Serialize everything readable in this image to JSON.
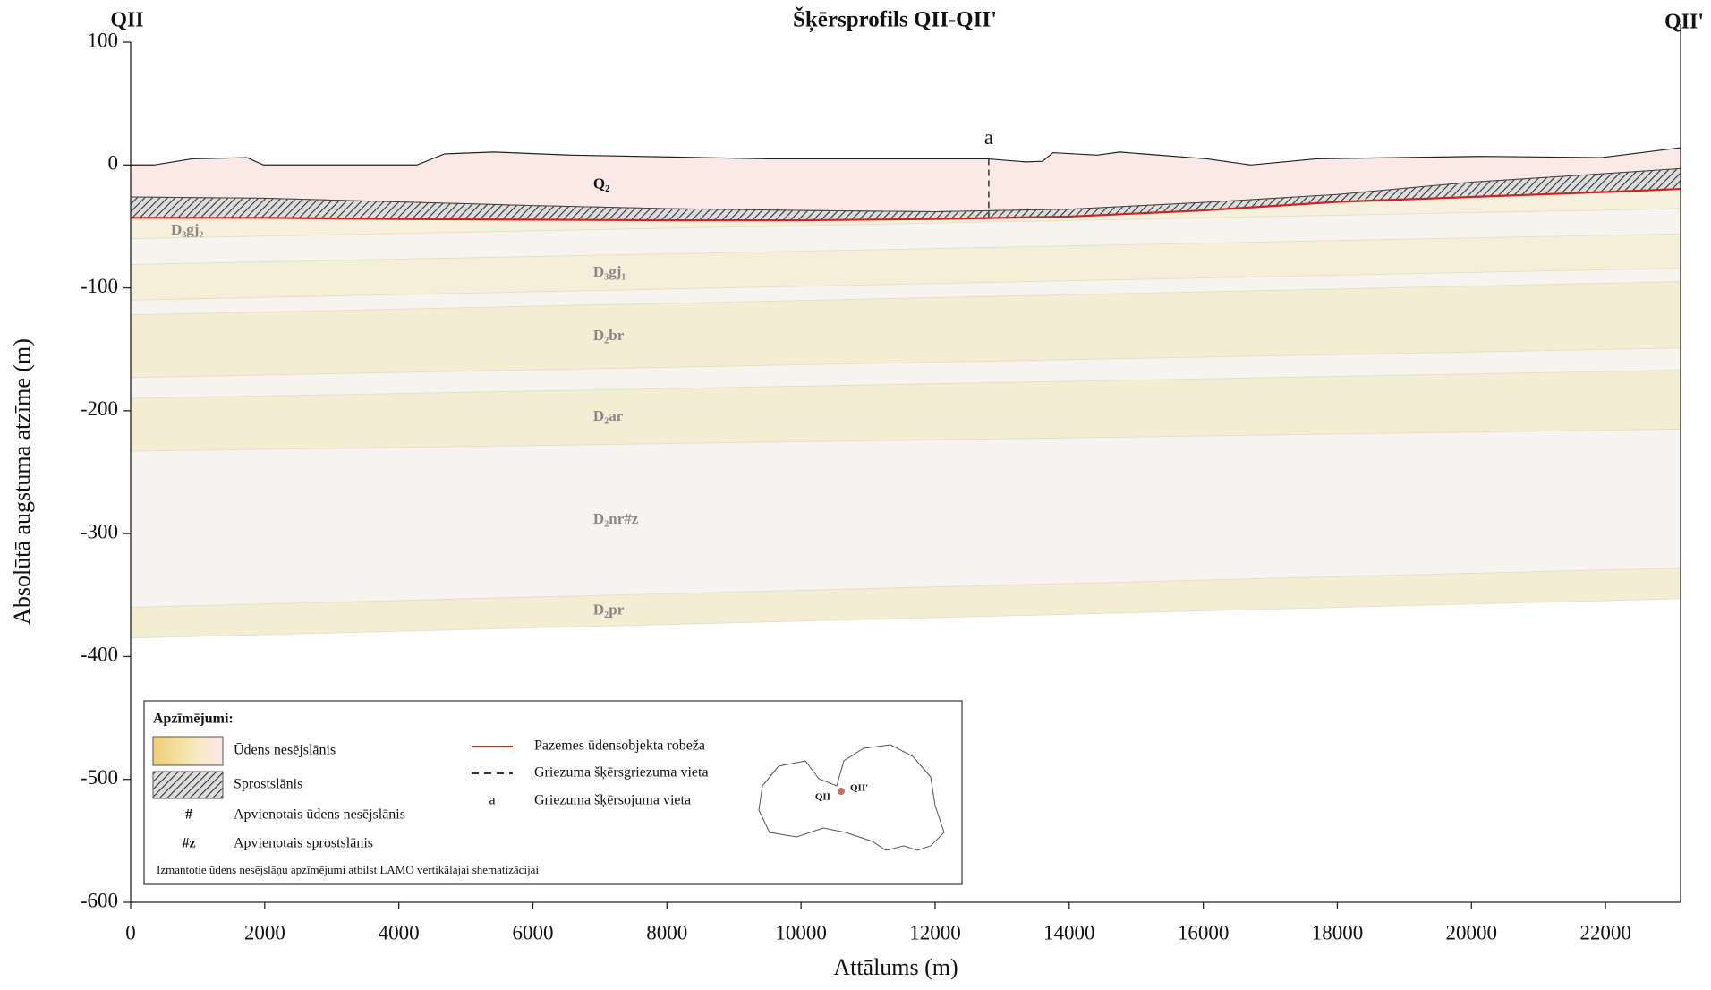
{
  "chart_data": {
    "type": "section",
    "title": "Šķērsprofils QII-QII'",
    "left_label": "QII",
    "right_label": "QII'",
    "xlabel": "Attālums (m)",
    "ylabel": "Absolūtā augstuma atzīme (m)",
    "xlim": [
      0,
      23120
    ],
    "ylim": [
      -600,
      100
    ],
    "xticks": [
      0,
      2000,
      4000,
      6000,
      8000,
      10000,
      12000,
      14000,
      16000,
      18000,
      20000,
      22000
    ],
    "yticks": [
      100,
      0,
      -100,
      -200,
      -300,
      -400,
      -500,
      -600
    ],
    "surface": {
      "color": "#222222",
      "fill": "#fbe9e6",
      "label": "Q₂",
      "x": [
        0,
        350,
        916,
        1735,
        1980,
        4270,
        4680,
        5420,
        6560,
        9510,
        12780,
        13350,
        13600,
        13760,
        14420,
        14750,
        16050,
        16710,
        17690,
        20140,
        21940,
        23120
      ],
      "values": [
        0,
        0,
        5,
        6,
        0,
        0,
        9,
        10.5,
        8,
        5,
        5,
        2.5,
        3,
        10,
        8,
        10.5,
        5,
        0,
        5,
        7,
        6,
        14
      ]
    },
    "contacts_x": [
      0,
      2000,
      4000,
      6000,
      8000,
      10000,
      12000,
      14000,
      16000,
      18000,
      20000,
      22000,
      23120
    ],
    "aquitard_top": [
      -26,
      -27,
      -30,
      -33,
      -35.5,
      -37,
      -38,
      -36,
      -30.5,
      -24,
      -14,
      -7,
      -3
    ],
    "boundary": {
      "color": "#d42020",
      "values": [
        -43,
        -43,
        -44,
        -44.5,
        -45,
        -45,
        -44,
        -42,
        -37,
        -30,
        -26,
        -22,
        -19.5
      ]
    },
    "layers": [
      {
        "name": "D₃gj₂",
        "color": "#f6f0dc",
        "top": [
          -43,
          -19.5
        ],
        "bottom": [
          -60,
          -35.5
        ]
      },
      {
        "name": null,
        "color": "#f6f4ee",
        "top": [
          -60,
          -35.5
        ],
        "bottom": [
          -81,
          -56
        ]
      },
      {
        "name": "D₃gj₁",
        "color": "#f5efd9",
        "top": [
          -81,
          -56
        ],
        "bottom": [
          -110,
          -84
        ]
      },
      {
        "name": null,
        "color": "#f6f4ee",
        "top": [
          -110,
          -84
        ],
        "bottom": [
          -122,
          -95
        ]
      },
      {
        "name": "D₂br",
        "color": "#f4ecd3",
        "top": [
          -122,
          -95
        ],
        "bottom": [
          -173,
          -149
        ]
      },
      {
        "name": null,
        "color": "#f6f4ee",
        "top": [
          -173,
          -149
        ],
        "bottom": [
          -190,
          -167
        ]
      },
      {
        "name": "D₂ar",
        "color": "#f4ecd3",
        "top": [
          -190,
          -167
        ],
        "bottom": [
          -233,
          -215
        ]
      },
      {
        "name": "D₂nr#z",
        "color": "#f6f4f0",
        "top": [
          -233,
          -215
        ],
        "bottom": [
          -360,
          -328
        ]
      },
      {
        "name": "D₂pr",
        "color": "#f4ecd3",
        "top": [
          -360,
          -328
        ],
        "bottom": [
          -385,
          -353
        ]
      }
    ],
    "section_marker": {
      "x": 12800,
      "label": "a"
    },
    "legend": {
      "title": "Apzīmējumi:",
      "aquifer": "Ūdens nesējslānis",
      "aquitard": "Sprostslānis",
      "combined_aquifer_symbol": "#",
      "combined_aquifer": "Apvienotais ūdens nesējslānis",
      "combined_aquitard_symbol": "#z",
      "combined_aquitard": "Apvienotais sprostslānis",
      "note": "Izmantotie ūdens nesējslāņu apzīmējumi atbilst LAMO vertikālajai shematizācijai",
      "boundary": "Pazemes ūdensobjekta robeža",
      "section_line": "Griezuma šķērsgriezuma vieta",
      "crossing_symbol": "a",
      "crossing": "Griezuma šķērsojuma vieta",
      "map_left": "QII",
      "map_right": "QII'"
    }
  }
}
